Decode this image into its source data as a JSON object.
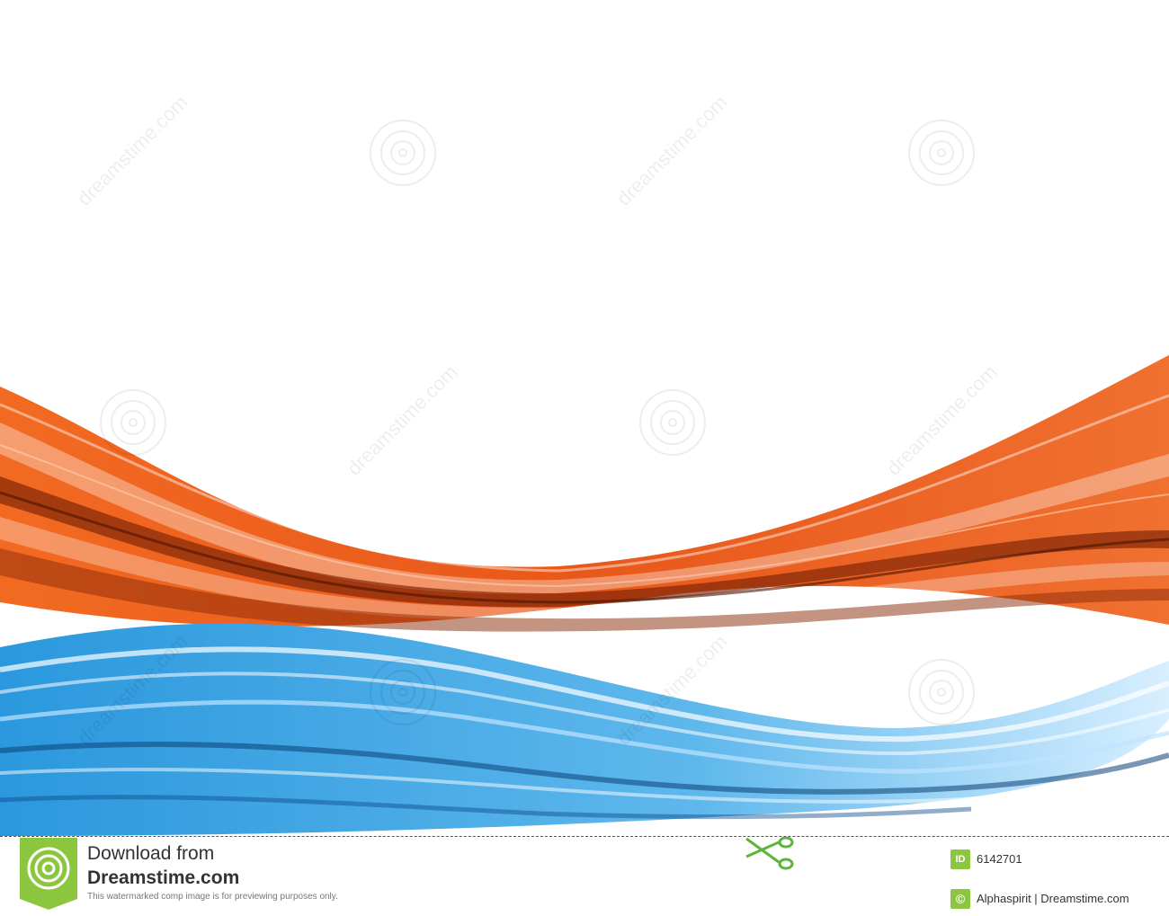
{
  "colors": {
    "orange": "#e8581a",
    "orange_dark": "#7a2206",
    "blue": "#2a9be0",
    "blue_dark": "#0b3f77",
    "brand_green": "#8cc63f"
  },
  "artwork": {
    "subject": "orange-and-blue-swoosh-waves",
    "watermark_text": "dreamstime.com"
  },
  "footer": {
    "download_line1": "Download from",
    "download_line2": "Dreamstime.com",
    "note": "This watermarked comp image is for previewing purposes only.",
    "id_label": "ID",
    "image_id": "6142701",
    "copyright_symbol": "©",
    "credit": "Alphaspirit | Dreamstime.com"
  }
}
